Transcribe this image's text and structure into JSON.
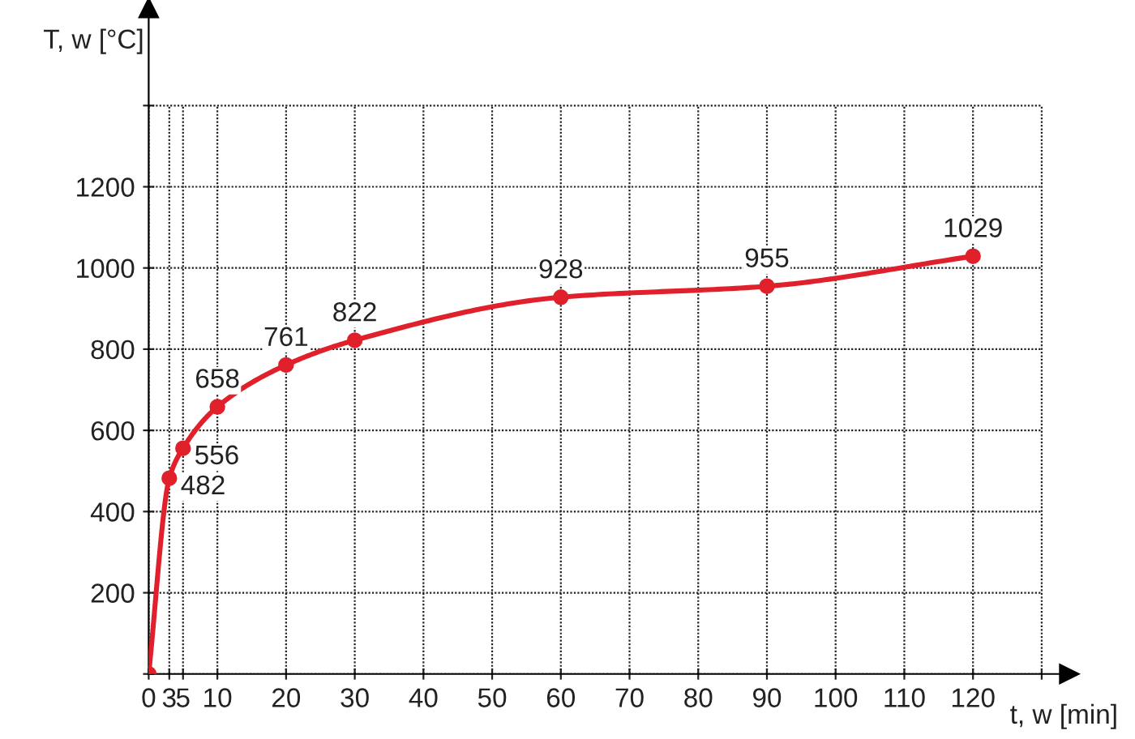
{
  "chart_data": {
    "type": "line",
    "xlabel": "t, w [min]",
    "ylabel": "T, w [°C]",
    "x": [
      0,
      3,
      5,
      10,
      20,
      30,
      60,
      90,
      120
    ],
    "series": [
      {
        "color": "#e0202a",
        "values": [
          0,
          482,
          556,
          658,
          761,
          822,
          928,
          955,
          1029
        ],
        "value_labels": [
          null,
          "482",
          "556",
          "658",
          "761",
          "822",
          "928",
          "955",
          "1029"
        ]
      }
    ],
    "xlim": [
      0,
      134
    ],
    "ylim": [
      0,
      1640
    ],
    "xticks": [
      0,
      3,
      5,
      10,
      20,
      30,
      40,
      50,
      60,
      70,
      80,
      90,
      100,
      110,
      120,
      {
        "value": 130,
        "label": null
      }
    ],
    "yticks": [
      {
        "value": 0,
        "label": null
      },
      200,
      400,
      600,
      800,
      1000,
      1200,
      {
        "value": 1400,
        "label": null
      }
    ],
    "grid": true,
    "marker": "circle",
    "line_style": "solid"
  }
}
